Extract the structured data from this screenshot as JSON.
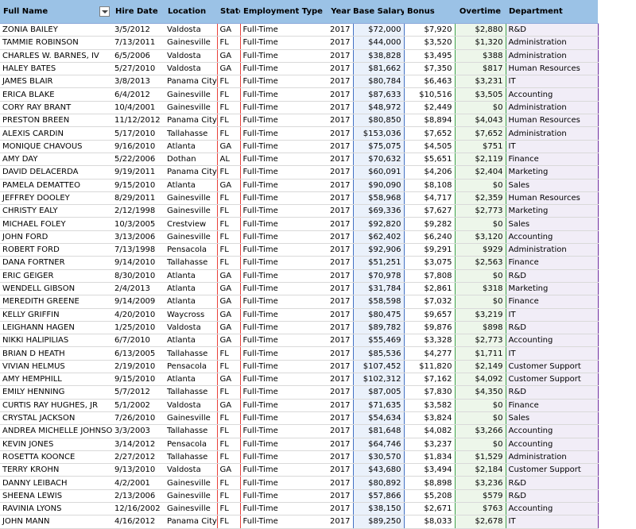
{
  "headers": {
    "full_name": "Full Name",
    "hire_date": "Hire Date",
    "location": "Location",
    "state": "State",
    "employment_type": "Employment Type",
    "year": "Year",
    "base_salary": "Base Salary",
    "bonus": "Bonus",
    "overtime": "Overtime",
    "department": "Department"
  },
  "rows": [
    [
      "ZONIA BAILEY",
      "3/5/2012",
      "Valdosta",
      "GA",
      "Full-Time",
      "2017",
      "$72,000",
      "$7,920",
      "$2,880",
      "R&D"
    ],
    [
      "TAMMIE ROBINSON",
      "7/13/2011",
      "Gainesville",
      "FL",
      "Full-Time",
      "2017",
      "$44,000",
      "$3,520",
      "$1,320",
      "Administration"
    ],
    [
      "CHARLES W. BARNES, IV",
      "6/5/2006",
      "Valdosta",
      "GA",
      "Full-Time",
      "2017",
      "$38,828",
      "$3,495",
      "$388",
      "Administration"
    ],
    [
      "HALEY BATES",
      "5/27/2010",
      "Valdosta",
      "GA",
      "Full-Time",
      "2017",
      "$81,662",
      "$7,350",
      "$817",
      "Human Resources"
    ],
    [
      "JAMES BLAIR",
      "3/8/2013",
      "Panama City",
      "FL",
      "Full-Time",
      "2017",
      "$80,784",
      "$6,463",
      "$3,231",
      "IT"
    ],
    [
      "ERICA BLAKE",
      "6/4/2012",
      "Gainesville",
      "FL",
      "Full-Time",
      "2017",
      "$87,633",
      "$10,516",
      "$3,505",
      "Accounting"
    ],
    [
      "CORY RAY BRANT",
      "10/4/2001",
      "Gainesville",
      "FL",
      "Full-Time",
      "2017",
      "$48,972",
      "$2,449",
      "$0",
      "Administration"
    ],
    [
      "PRESTON BREEN",
      "11/12/2012",
      "Panama City",
      "FL",
      "Full-Time",
      "2017",
      "$80,850",
      "$8,894",
      "$4,043",
      "Human Resources"
    ],
    [
      "ALEXIS CARDIN",
      "5/17/2010",
      "Tallahasse",
      "FL",
      "Full-Time",
      "2017",
      "$153,036",
      "$7,652",
      "$7,652",
      "Administration"
    ],
    [
      "MONIQUE CHAVOUS",
      "9/16/2010",
      "Atlanta",
      "GA",
      "Full-Time",
      "2017",
      "$75,075",
      "$4,505",
      "$751",
      "IT"
    ],
    [
      "AMY DAY",
      "5/22/2006",
      "Dothan",
      "AL",
      "Full-Time",
      "2017",
      "$70,632",
      "$5,651",
      "$2,119",
      "Finance"
    ],
    [
      "DAVID DELACERDA",
      "9/19/2011",
      "Panama City",
      "FL",
      "Full-Time",
      "2017",
      "$60,091",
      "$4,206",
      "$2,404",
      "Marketing"
    ],
    [
      "PAMELA DEMATTEO",
      "9/15/2010",
      "Atlanta",
      "GA",
      "Full-Time",
      "2017",
      "$90,090",
      "$8,108",
      "$0",
      "Sales"
    ],
    [
      "JEFFREY DOOLEY",
      "8/29/2011",
      "Gainesville",
      "FL",
      "Full-Time",
      "2017",
      "$58,968",
      "$4,717",
      "$2,359",
      "Human Resources"
    ],
    [
      "CHRISTY EALY",
      "2/12/1998",
      "Gainesville",
      "FL",
      "Full-Time",
      "2017",
      "$69,336",
      "$7,627",
      "$2,773",
      "Marketing"
    ],
    [
      "MICHAEL FOLEY",
      "10/3/2005",
      "Crestview",
      "FL",
      "Full-Time",
      "2017",
      "$92,820",
      "$9,282",
      "$0",
      "Sales"
    ],
    [
      "JOHN FORD",
      "3/13/2006",
      "Gainesville",
      "FL",
      "Full-Time",
      "2017",
      "$62,402",
      "$6,240",
      "$3,120",
      "Accounting"
    ],
    [
      "ROBERT FORD",
      "7/13/1998",
      "Pensacola",
      "FL",
      "Full-Time",
      "2017",
      "$92,906",
      "$9,291",
      "$929",
      "Administration"
    ],
    [
      "DANA FORTNER",
      "9/14/2010",
      "Tallahasse",
      "FL",
      "Full-Time",
      "2017",
      "$51,251",
      "$3,075",
      "$2,563",
      "Finance"
    ],
    [
      "ERIC GEIGER",
      "8/30/2010",
      "Atlanta",
      "GA",
      "Full-Time",
      "2017",
      "$70,978",
      "$7,808",
      "$0",
      "R&D"
    ],
    [
      "WENDELL GIBSON",
      "2/4/2013",
      "Atlanta",
      "GA",
      "Full-Time",
      "2017",
      "$31,784",
      "$2,861",
      "$318",
      "Marketing"
    ],
    [
      "MEREDITH GREENE",
      "9/14/2009",
      "Atlanta",
      "GA",
      "Full-Time",
      "2017",
      "$58,598",
      "$7,032",
      "$0",
      "Finance"
    ],
    [
      "KELLY GRIFFIN",
      "4/20/2010",
      "Waycross",
      "GA",
      "Full-Time",
      "2017",
      "$80,475",
      "$9,657",
      "$3,219",
      "IT"
    ],
    [
      "LEIGHANN HAGEN",
      "1/25/2010",
      "Valdosta",
      "GA",
      "Full-Time",
      "2017",
      "$89,782",
      "$9,876",
      "$898",
      "R&D"
    ],
    [
      "NIKKI HALIPILIAS",
      "6/7/2010",
      "Atlanta",
      "GA",
      "Full-Time",
      "2017",
      "$55,469",
      "$3,328",
      "$2,773",
      "Accounting"
    ],
    [
      "BRIAN D HEATH",
      "6/13/2005",
      "Tallahasse",
      "FL",
      "Full-Time",
      "2017",
      "$85,536",
      "$4,277",
      "$1,711",
      "IT"
    ],
    [
      "VIVIAN HELMUS",
      "2/19/2010",
      "Pensacola",
      "FL",
      "Full-Time",
      "2017",
      "$107,452",
      "$11,820",
      "$2,149",
      "Customer Support"
    ],
    [
      "AMY HEMPHILL",
      "9/15/2010",
      "Atlanta",
      "GA",
      "Full-Time",
      "2017",
      "$102,312",
      "$7,162",
      "$4,092",
      "Customer Support"
    ],
    [
      "EMILY HENNING",
      "5/7/2012",
      "Tallahasse",
      "FL",
      "Full-Time",
      "2017",
      "$87,005",
      "$7,830",
      "$4,350",
      "R&D"
    ],
    [
      "CURTIS RAY HUGHES, JR",
      "5/1/2002",
      "Valdosta",
      "GA",
      "Full-Time",
      "2017",
      "$71,635",
      "$3,582",
      "$0",
      "Finance"
    ],
    [
      "CRYSTAL JACKSON",
      "7/26/2010",
      "Gainesville",
      "FL",
      "Full-Time",
      "2017",
      "$54,634",
      "$3,824",
      "$0",
      "Sales"
    ],
    [
      "ANDREA MICHELLE JOHNSON",
      "3/3/2003",
      "Tallahasse",
      "FL",
      "Full-Time",
      "2017",
      "$81,648",
      "$4,082",
      "$3,266",
      "Accounting"
    ],
    [
      "KEVIN JONES",
      "3/14/2012",
      "Pensacola",
      "FL",
      "Full-Time",
      "2017",
      "$64,746",
      "$3,237",
      "$0",
      "Accounting"
    ],
    [
      "ROSETTA KOONCE",
      "2/27/2012",
      "Tallahasse",
      "FL",
      "Full-Time",
      "2017",
      "$30,570",
      "$1,834",
      "$1,529",
      "Administration"
    ],
    [
      "TERRY KROHN",
      "9/13/2010",
      "Valdosta",
      "GA",
      "Full-Time",
      "2017",
      "$43,680",
      "$3,494",
      "$2,184",
      "Customer Support"
    ],
    [
      "DANNY LEIBACH",
      "4/2/2001",
      "Gainesville",
      "FL",
      "Full-Time",
      "2017",
      "$80,892",
      "$8,898",
      "$3,236",
      "R&D"
    ],
    [
      "SHEENA LEWIS",
      "2/13/2006",
      "Gainesville",
      "FL",
      "Full-Time",
      "2017",
      "$57,866",
      "$5,208",
      "$579",
      "R&D"
    ],
    [
      "RAVINIA LYONS",
      "12/16/2002",
      "Gainesville",
      "FL",
      "Full-Time",
      "2017",
      "$38,150",
      "$2,671",
      "$763",
      "Accounting"
    ],
    [
      "JOHN MANN",
      "4/16/2012",
      "Panama City",
      "FL",
      "Full-Time",
      "2017",
      "$89,250",
      "$8,033",
      "$2,678",
      "IT"
    ]
  ]
}
